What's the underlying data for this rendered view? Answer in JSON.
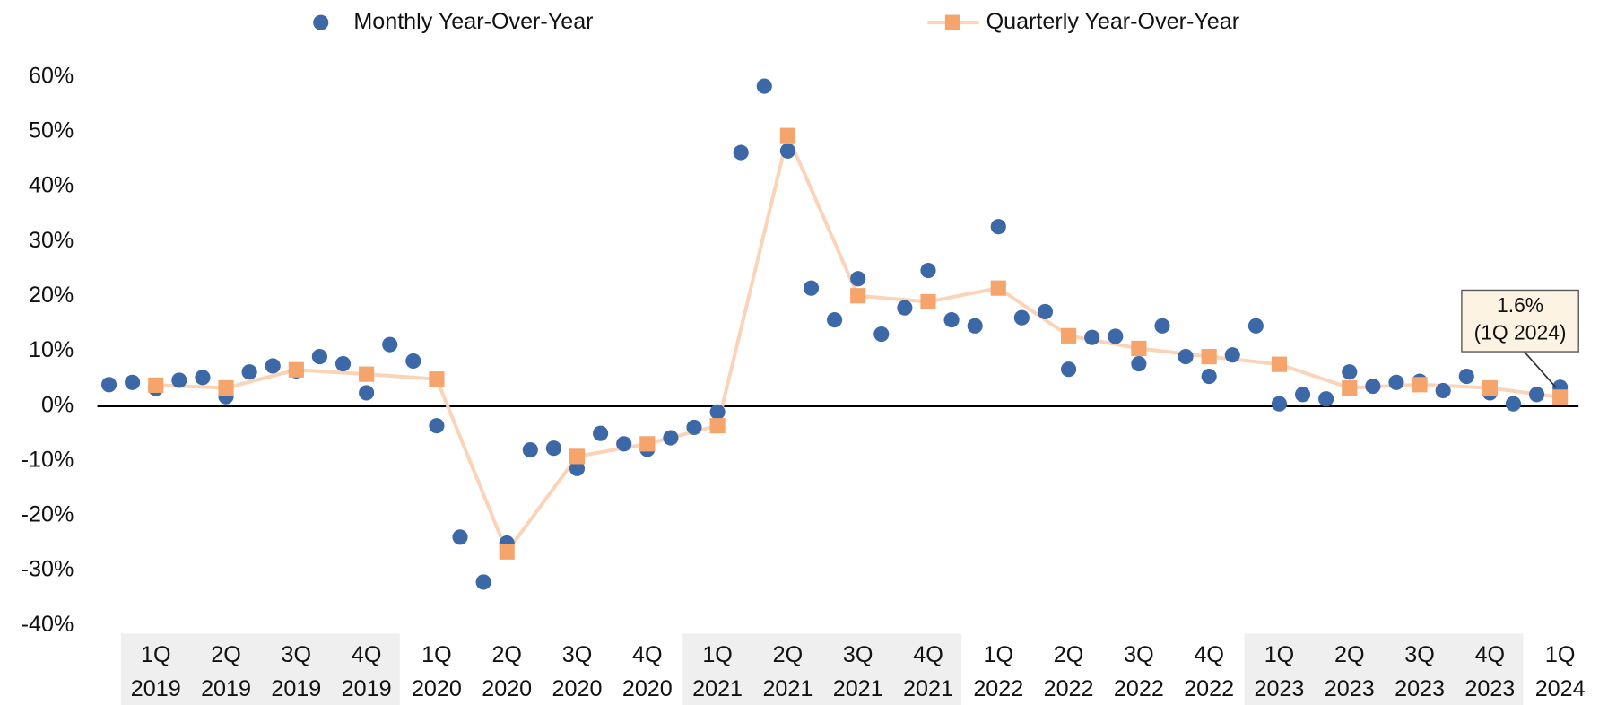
{
  "chart_data": {
    "type": "scatter_line",
    "categories": [
      [
        "1Q",
        "2019"
      ],
      [
        "2Q",
        "2019"
      ],
      [
        "3Q",
        "2019"
      ],
      [
        "4Q",
        "2019"
      ],
      [
        "1Q",
        "2020"
      ],
      [
        "2Q",
        "2020"
      ],
      [
        "3Q",
        "2020"
      ],
      [
        "4Q",
        "2020"
      ],
      [
        "1Q",
        "2021"
      ],
      [
        "2Q",
        "2021"
      ],
      [
        "3Q",
        "2021"
      ],
      [
        "4Q",
        "2021"
      ],
      [
        "1Q",
        "2022"
      ],
      [
        "2Q",
        "2022"
      ],
      [
        "3Q",
        "2022"
      ],
      [
        "4Q",
        "2022"
      ],
      [
        "1Q",
        "2023"
      ],
      [
        "2Q",
        "2023"
      ],
      [
        "3Q",
        "2023"
      ],
      [
        "4Q",
        "2023"
      ],
      [
        "1Q",
        "2024"
      ]
    ],
    "series": [
      {
        "name": "Monthly Year-Over-Year",
        "color": "#3d68a7",
        "values": [
          3.9,
          4.3,
          3.2,
          4.7,
          5.2,
          1.7,
          6.2,
          7.3,
          6.4,
          9.0,
          7.7,
          2.4,
          11.2,
          8.2,
          -3.6,
          -23.9,
          -32.1,
          -25.0,
          -8.0,
          -7.7,
          -11.4,
          -5.0,
          -6.9,
          -7.9,
          -5.8,
          -3.9,
          -1.1,
          46.2,
          58.3,
          46.5,
          21.5,
          15.7,
          23.2,
          13.1,
          17.9,
          24.7,
          15.7,
          14.6,
          32.7,
          16.1,
          17.2,
          6.7,
          12.5,
          12.7,
          7.7,
          14.6,
          9.0,
          5.4,
          9.3,
          14.6,
          0.4,
          2.1,
          1.3,
          6.2,
          3.6,
          4.3,
          4.5,
          2.8,
          5.4,
          2.4,
          0.4,
          2.1,
          3.4
        ]
      },
      {
        "name": "Quarterly Year-Over-Year",
        "color": "#f5a46c",
        "line_color": "#fbd3b8",
        "values": [
          3.8,
          3.3,
          6.6,
          5.8,
          4.9,
          -26.6,
          -9.2,
          -6.9,
          -3.6,
          49.3,
          20.1,
          19.0,
          21.5,
          12.8,
          10.5,
          9.0,
          7.6,
          3.3,
          3.9,
          3.3,
          1.6
        ]
      }
    ],
    "ylim": [
      -40,
      60
    ],
    "yticks": [
      {
        "value": -40,
        "label": "-40%"
      },
      {
        "value": -30,
        "label": "-30%"
      },
      {
        "value": -20,
        "label": "-20%"
      },
      {
        "value": -10,
        "label": "-10%"
      },
      {
        "value": 0,
        "label": "0%"
      },
      {
        "value": 10,
        "label": "10%"
      },
      {
        "value": 20,
        "label": "20%"
      },
      {
        "value": 30,
        "label": "30%"
      },
      {
        "value": 40,
        "label": "40%"
      },
      {
        "value": 50,
        "label": "50%"
      },
      {
        "value": 60,
        "label": "60%"
      }
    ],
    "annotation": {
      "lines": [
        "1.6%",
        "(1Q 2024)"
      ]
    }
  }
}
